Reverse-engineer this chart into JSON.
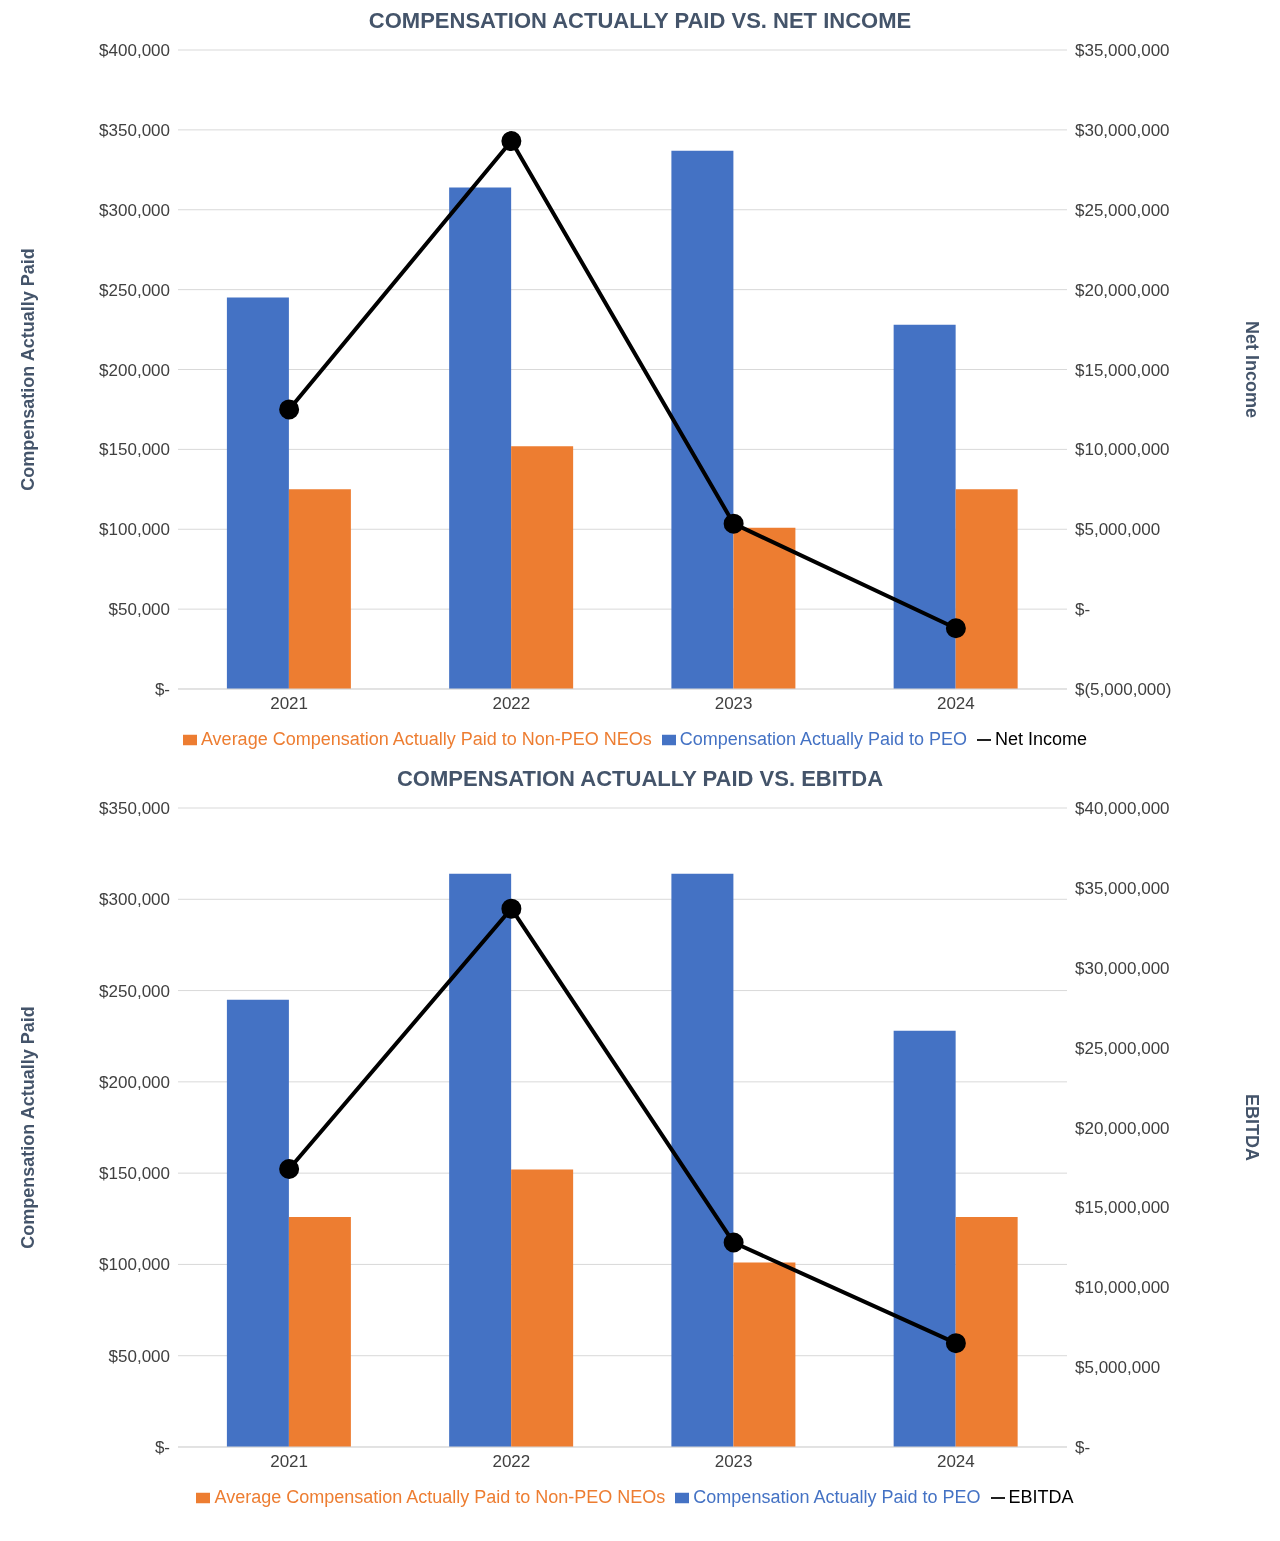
{
  "chart_data": [
    {
      "type": "bar",
      "title": "COMPENSATION ACTUALLY PAID  VS. NET INCOME",
      "ylabel": "Compensation Actually Paid",
      "y2label": "Net Income",
      "categories": [
        "2021",
        "2022",
        "2023",
        "2024"
      ],
      "series": [
        {
          "name": "Compensation Actually Paid to PEO",
          "color": "#4472c4",
          "values": [
            245000,
            314000,
            337000,
            228000
          ]
        },
        {
          "name": "Average Compensation Actually Paid to Non-PEO NEOs",
          "color": "#ed7d31",
          "values": [
            125000,
            152000,
            101000,
            125000
          ]
        },
        {
          "name": "Net Income",
          "type": "line",
          "axis": "y2",
          "color": "#000000",
          "values": [
            12500000,
            29300000,
            5350000,
            -1200000
          ]
        }
      ],
      "ylim": [
        0,
        400000
      ],
      "yticks": [
        {
          "value": 0,
          "label": "$-"
        },
        {
          "value": 50000,
          "label": "$50,000"
        },
        {
          "value": 100000,
          "label": "$100,000"
        },
        {
          "value": 150000,
          "label": "$150,000"
        },
        {
          "value": 200000,
          "label": "$200,000"
        },
        {
          "value": 250000,
          "label": "$250,000"
        },
        {
          "value": 300000,
          "label": "$300,000"
        },
        {
          "value": 350000,
          "label": "$350,000"
        },
        {
          "value": 400000,
          "label": "$400,000"
        }
      ],
      "y2lim": [
        -5000000,
        35000000
      ],
      "y2ticks": [
        {
          "value": -5000000,
          "label": "$(5,000,000)"
        },
        {
          "value": 0,
          "label": "$-"
        },
        {
          "value": 5000000,
          "label": "$5,000,000"
        },
        {
          "value": 10000000,
          "label": "$10,000,000"
        },
        {
          "value": 15000000,
          "label": "$15,000,000"
        },
        {
          "value": 20000000,
          "label": "$20,000,000"
        },
        {
          "value": 25000000,
          "label": "$25,000,000"
        },
        {
          "value": 30000000,
          "label": "$30,000,000"
        },
        {
          "value": 35000000,
          "label": "$35,000,000"
        }
      ],
      "grid": "y",
      "legend": "bottom",
      "marker": "circle",
      "line_style": "solid"
    },
    {
      "type": "bar",
      "title": "COMPENSATION ACTUALLY PAID VS. EBITDA",
      "ylabel": "Compensation Actually Paid",
      "y2label": "EBITDA",
      "categories": [
        "2021",
        "2022",
        "2023",
        "2024"
      ],
      "series": [
        {
          "name": "Compensation Actually Paid to PEO",
          "color": "#4472c4",
          "values": [
            245000,
            314000,
            314000,
            228000
          ]
        },
        {
          "name": "Average Compensation Actually Paid to Non-PEO NEOs",
          "color": "#ed7d31",
          "values": [
            126000,
            152000,
            101000,
            126000
          ]
        },
        {
          "name": "EBITDA",
          "type": "line",
          "axis": "y2",
          "color": "#000000",
          "values": [
            17400000,
            33700000,
            12800000,
            6500000
          ]
        }
      ],
      "ylim": [
        0,
        350000
      ],
      "yticks": [
        {
          "value": 0,
          "label": "$-"
        },
        {
          "value": 50000,
          "label": "$50,000"
        },
        {
          "value": 100000,
          "label": "$100,000"
        },
        {
          "value": 150000,
          "label": "$150,000"
        },
        {
          "value": 200000,
          "label": "$200,000"
        },
        {
          "value": 250000,
          "label": "$250,000"
        },
        {
          "value": 300000,
          "label": "$300,000"
        },
        {
          "value": 350000,
          "label": "$350,000"
        }
      ],
      "y2lim": [
        0,
        40000000
      ],
      "y2ticks": [
        {
          "value": 0,
          "label": "$-"
        },
        {
          "value": 5000000,
          "label": "$5,000,000"
        },
        {
          "value": 10000000,
          "label": "$10,000,000"
        },
        {
          "value": 15000000,
          "label": "$15,000,000"
        },
        {
          "value": 20000000,
          "label": "$20,000,000"
        },
        {
          "value": 25000000,
          "label": "$25,000,000"
        },
        {
          "value": 30000000,
          "label": "$30,000,000"
        },
        {
          "value": 35000000,
          "label": "$35,000,000"
        },
        {
          "value": 40000000,
          "label": "$40,000,000"
        }
      ],
      "grid": "y",
      "legend": "bottom",
      "marker": "circle",
      "line_style": "solid"
    }
  ]
}
